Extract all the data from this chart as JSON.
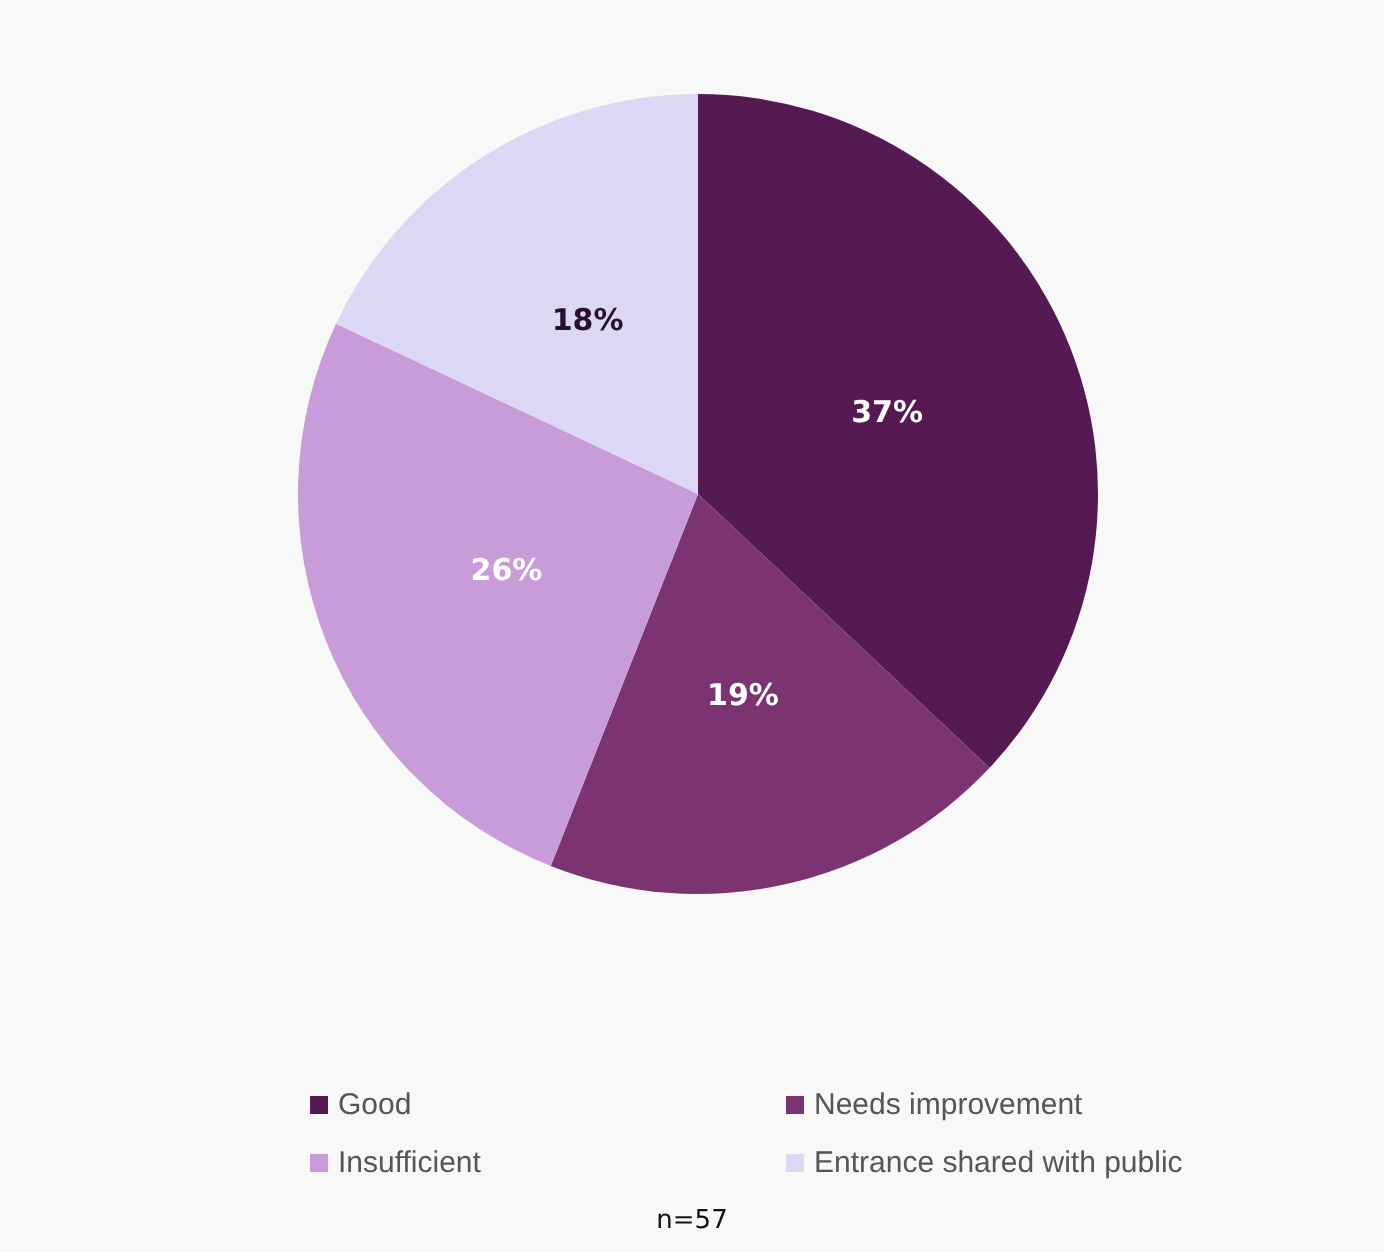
{
  "chart_data": {
    "type": "pie",
    "categories": [
      "Good",
      "Needs improvement",
      "Insufficient",
      "Entrance shared with public"
    ],
    "values": [
      37,
      19,
      26,
      18
    ],
    "colors": [
      "#561a53",
      "#7b3372",
      "#c79cd8",
      "#dcd7f4"
    ],
    "value_labels": [
      "37%",
      "19%",
      "26%",
      "18%"
    ],
    "legend": "bottom",
    "annotations": [
      "n=57"
    ]
  }
}
